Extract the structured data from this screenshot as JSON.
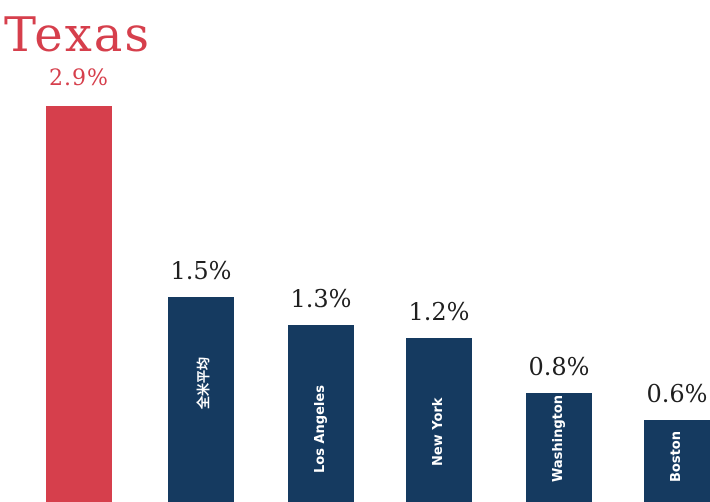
{
  "chart_data": {
    "type": "bar",
    "categories": [
      "Texas",
      "全米平均",
      "Los Angeles",
      "New York",
      "Washington",
      "Boston"
    ],
    "values": [
      2.9,
      1.5,
      1.3,
      1.2,
      0.8,
      0.6
    ],
    "value_labels": [
      "2.9%",
      "1.5%",
      "1.3%",
      "1.2%",
      "0.8%",
      "0.6%"
    ],
    "highlight": "Texas",
    "ylim": [
      0,
      3.4
    ],
    "grid": false,
    "colors": {
      "highlight": "#d63f4c",
      "default": "#153a60"
    }
  }
}
